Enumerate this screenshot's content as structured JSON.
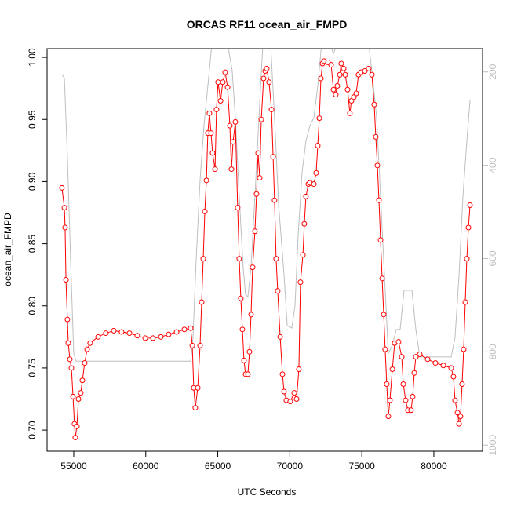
{
  "chart_data": {
    "type": "line",
    "title": "ORCAS RF11 ocean_air_FMPD",
    "x_label": "UTC Seconds",
    "y_label": "ocean_air_FMPD",
    "xlim": [
      53150,
      83380
    ],
    "xticks": [
      55000,
      60000,
      65000,
      70000,
      75000,
      80000
    ],
    "ylim": [
      0.683,
      1.007
    ],
    "yticks": [
      {
        "value": 0.7,
        "label": "0.70"
      },
      0.75,
      {
        "value": 0.8,
        "label": "0.80"
      },
      0.85,
      {
        "value": 0.9,
        "label": "0.90"
      },
      0.95,
      {
        "value": 1.0,
        "label": "1.00"
      }
    ],
    "y2lim": [
      1013,
      150
    ],
    "y2ticks": [
      200,
      400,
      600,
      800,
      1000
    ],
    "y2_color": "#bebebe",
    "series": [
      {
        "color": "#bebebe",
        "axis": "y2",
        "markers": false,
        "x": [
          54180,
          54350,
          54560,
          54780,
          55000,
          55160,
          55330,
          58050,
          60770,
          63120,
          63280,
          63500,
          63770,
          64040,
          64310,
          64590,
          64860,
          65680,
          66000,
          66220,
          66490,
          66760,
          66930,
          67090,
          67310,
          67580,
          67860,
          68130,
          68670,
          68940,
          69220,
          69600,
          69820,
          70140,
          70360,
          70580,
          70850,
          71120,
          71400,
          71670,
          71940,
          72210,
          72760,
          73030,
          73300,
          75480,
          75750,
          76030,
          76300,
          76570,
          76840,
          77120,
          77390,
          77660,
          77930,
          78480,
          78750,
          79020,
          81200,
          81470,
          81750,
          82020,
          82290,
          82510
        ],
        "values": [
          205,
          213,
          382,
          601,
          803,
          820,
          820,
          820,
          820,
          820,
          769,
          601,
          432,
          315,
          230,
          140,
          140,
          140,
          197,
          298,
          466,
          618,
          677,
          682,
          618,
          466,
          298,
          140,
          140,
          298,
          483,
          635,
          744,
          749,
          702,
          550,
          416,
          348,
          315,
          298,
          230,
          140,
          140,
          160,
          140,
          140,
          213,
          298,
          466,
          635,
          803,
          786,
          752,
          752,
          668,
          668,
          752,
          811,
          811,
          769,
          635,
          466,
          348,
          261
        ]
      },
      {
        "color": "#ff0000",
        "markers": true,
        "x": [
          54180,
          54350,
          54400,
          54460,
          54560,
          54620,
          54730,
          54840,
          54950,
          55050,
          55110,
          55220,
          55330,
          55490,
          55600,
          55760,
          55930,
          56140,
          56690,
          57230,
          57780,
          58320,
          58870,
          59410,
          59960,
          60500,
          61050,
          61590,
          62140,
          62680,
          63120,
          63230,
          63330,
          63440,
          63610,
          63770,
          63880,
          63990,
          64100,
          64210,
          64310,
          64420,
          64530,
          64640,
          64810,
          64910,
          65020,
          65190,
          65350,
          65510,
          65680,
          65840,
          65950,
          66060,
          66220,
          66380,
          66490,
          66600,
          66710,
          66820,
          66930,
          67090,
          67200,
          67310,
          67420,
          67580,
          67690,
          67800,
          67910,
          68020,
          68180,
          68290,
          68400,
          68560,
          68730,
          68840,
          68940,
          69050,
          69160,
          69330,
          69490,
          69600,
          69760,
          70030,
          70310,
          70470,
          70630,
          70740,
          70910,
          71010,
          71120,
          71290,
          71400,
          71670,
          71830,
          71940,
          72050,
          72160,
          72270,
          72380,
          72650,
          72870,
          73030,
          73190,
          73300,
          73470,
          73570,
          73740,
          73850,
          74010,
          74170,
          74280,
          74450,
          74610,
          74770,
          74940,
          75210,
          75480,
          75700,
          75860,
          75970,
          76080,
          76190,
          76300,
          76410,
          76520,
          76620,
          76730,
          76840,
          76950,
          77120,
          77280,
          77550,
          77770,
          77880,
          78040,
          78200,
          78420,
          78530,
          78640,
          78750,
          79020,
          79570,
          80110,
          80660,
          81200,
          81360,
          81470,
          81640,
          81750,
          81850,
          81960,
          82070,
          82180,
          82290,
          82400,
          82510
        ],
        "values": [
          0.895,
          0.879,
          0.863,
          0.821,
          0.789,
          0.77,
          0.757,
          0.75,
          0.727,
          0.705,
          0.694,
          0.703,
          0.725,
          0.73,
          0.74,
          0.754,
          0.765,
          0.77,
          0.775,
          0.778,
          0.78,
          0.779,
          0.778,
          0.776,
          0.774,
          0.774,
          0.775,
          0.777,
          0.779,
          0.781,
          0.782,
          0.768,
          0.734,
          0.718,
          0.734,
          0.768,
          0.803,
          0.838,
          0.876,
          0.901,
          0.939,
          0.955,
          0.939,
          0.923,
          0.91,
          0.958,
          0.98,
          0.965,
          0.98,
          0.988,
          0.976,
          0.945,
          0.91,
          0.932,
          0.948,
          0.879,
          0.838,
          0.806,
          0.781,
          0.756,
          0.745,
          0.745,
          0.763,
          0.793,
          0.831,
          0.86,
          0.89,
          0.923,
          0.903,
          0.95,
          0.983,
          0.989,
          0.991,
          0.98,
          0.958,
          0.92,
          0.885,
          0.838,
          0.812,
          0.775,
          0.745,
          0.731,
          0.724,
          0.723,
          0.73,
          0.725,
          0.749,
          0.819,
          0.841,
          0.866,
          0.888,
          0.898,
          0.899,
          0.898,
          0.907,
          0.929,
          0.951,
          0.983,
          0.995,
          0.997,
          0.996,
          0.994,
          0.974,
          0.97,
          0.977,
          0.986,
          0.995,
          0.991,
          0.986,
          0.974,
          0.955,
          0.965,
          0.968,
          0.971,
          0.986,
          0.988,
          0.989,
          0.991,
          0.986,
          0.962,
          0.936,
          0.913,
          0.885,
          0.853,
          0.822,
          0.793,
          0.765,
          0.737,
          0.711,
          0.724,
          0.749,
          0.77,
          0.771,
          0.759,
          0.737,
          0.724,
          0.716,
          0.716,
          0.727,
          0.746,
          0.759,
          0.761,
          0.757,
          0.754,
          0.752,
          0.75,
          0.743,
          0.724,
          0.714,
          0.705,
          0.711,
          0.737,
          0.765,
          0.803,
          0.838,
          0.863,
          0.881
        ]
      }
    ]
  }
}
